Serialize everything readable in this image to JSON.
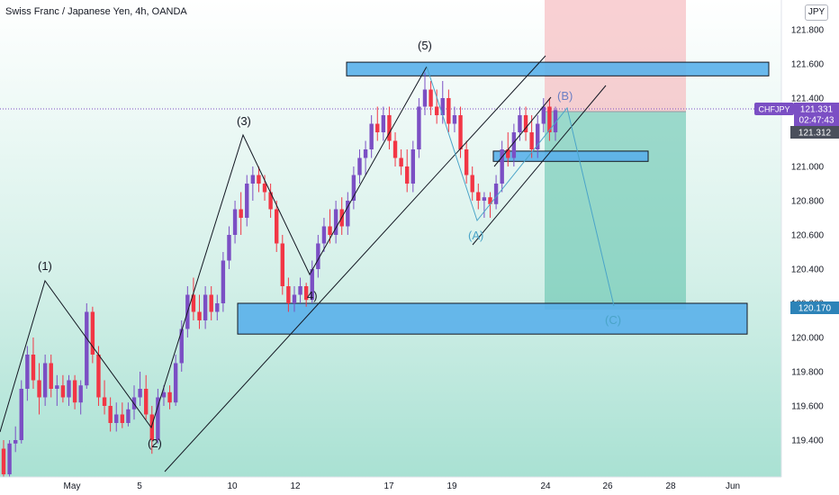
{
  "header": {
    "title": "Swiss Franc / Japanese Yen, 4h, OANDA",
    "currency": "JPY"
  },
  "price_badges": {
    "symbol": "CHFJPY",
    "last_price": "121.331",
    "countdown": "02:47:43",
    "level_1": "121.312",
    "level_2": "120.170"
  },
  "colors": {
    "bull": "#7b4fc4",
    "bear": "#f23645",
    "zone": "#5ab0ea",
    "target_zone": "#26a69a",
    "stop_zone": "#f23645"
  },
  "chart_data": {
    "type": "candlestick",
    "symbol": "CHFJPY",
    "title": "Swiss Franc / Japanese Yen, 4h, OANDA",
    "interval": "4h",
    "x_ticks": [
      "May",
      "5",
      "10",
      "12",
      "17",
      "19",
      "24",
      "26",
      "28",
      "Jun"
    ],
    "y_ticks": [
      "119.400",
      "119.600",
      "119.800",
      "120.000",
      "120.200",
      "120.400",
      "120.600",
      "120.800",
      "121.000",
      "121.200",
      "121.400",
      "121.600",
      "121.800"
    ],
    "ylim": [
      119.2,
      121.9
    ],
    "last_price": 121.331,
    "grid": false,
    "wave_labels": [
      "(1)",
      "(2)",
      "(3)",
      "4)",
      "(5)",
      "(A)",
      "(B)",
      "(C)"
    ],
    "candles_ohlc": [
      [
        119.35,
        119.4,
        119.15,
        119.2
      ],
      [
        119.2,
        119.4,
        119.18,
        119.38
      ],
      [
        119.38,
        119.48,
        119.33,
        119.4
      ],
      [
        119.4,
        119.75,
        119.38,
        119.7
      ],
      [
        119.7,
        119.95,
        119.63,
        119.9
      ],
      [
        119.9,
        120.0,
        119.7,
        119.75
      ],
      [
        119.75,
        119.85,
        119.55,
        119.65
      ],
      [
        119.65,
        119.9,
        119.6,
        119.85
      ],
      [
        119.85,
        119.9,
        119.65,
        119.7
      ],
      [
        119.7,
        119.78,
        119.6,
        119.72
      ],
      [
        119.72,
        119.78,
        119.62,
        119.65
      ],
      [
        119.65,
        119.78,
        119.6,
        119.75
      ],
      [
        119.75,
        119.78,
        119.58,
        119.62
      ],
      [
        119.62,
        119.75,
        119.55,
        119.72
      ],
      [
        119.72,
        120.2,
        119.7,
        120.15
      ],
      [
        120.15,
        120.18,
        119.85,
        119.9
      ],
      [
        119.9,
        119.95,
        119.6,
        119.65
      ],
      [
        119.65,
        119.75,
        119.55,
        119.6
      ],
      [
        119.6,
        119.65,
        119.45,
        119.5
      ],
      [
        119.5,
        119.62,
        119.45,
        119.55
      ],
      [
        119.55,
        119.62,
        119.47,
        119.5
      ],
      [
        119.5,
        119.62,
        119.48,
        119.58
      ],
      [
        119.58,
        119.72,
        119.52,
        119.65
      ],
      [
        119.65,
        119.8,
        119.6,
        119.7
      ],
      [
        119.7,
        119.78,
        119.52,
        119.55
      ],
      [
        119.55,
        119.6,
        119.32,
        119.4
      ],
      [
        119.4,
        119.7,
        119.38,
        119.65
      ],
      [
        119.65,
        119.72,
        119.6,
        119.68
      ],
      [
        119.68,
        119.72,
        119.58,
        119.62
      ],
      [
        119.62,
        119.9,
        119.6,
        119.85
      ],
      [
        119.85,
        120.1,
        119.8,
        120.05
      ],
      [
        120.05,
        120.3,
        120.0,
        120.25
      ],
      [
        120.25,
        120.35,
        120.1,
        120.15
      ],
      [
        120.15,
        120.25,
        120.05,
        120.1
      ],
      [
        120.1,
        120.3,
        120.05,
        120.25
      ],
      [
        120.25,
        120.3,
        120.1,
        120.15
      ],
      [
        120.15,
        120.25,
        120.1,
        120.2
      ],
      [
        120.2,
        120.5,
        120.15,
        120.45
      ],
      [
        120.45,
        120.65,
        120.4,
        120.6
      ],
      [
        120.6,
        120.8,
        120.55,
        120.75
      ],
      [
        120.75,
        120.85,
        120.6,
        120.7
      ],
      [
        120.7,
        120.95,
        120.65,
        120.9
      ],
      [
        120.9,
        121.0,
        120.8,
        120.95
      ],
      [
        120.95,
        121.0,
        120.85,
        120.9
      ],
      [
        120.9,
        120.95,
        120.8,
        120.85
      ],
      [
        120.85,
        120.9,
        120.7,
        120.75
      ],
      [
        120.75,
        120.8,
        120.5,
        120.55
      ],
      [
        120.55,
        120.6,
        120.25,
        120.3
      ],
      [
        120.3,
        120.35,
        120.15,
        120.2
      ],
      [
        120.2,
        120.3,
        120.15,
        120.25
      ],
      [
        120.25,
        120.35,
        120.2,
        120.3
      ],
      [
        120.3,
        120.32,
        120.18,
        120.22
      ],
      [
        120.22,
        120.45,
        120.2,
        120.4
      ],
      [
        120.4,
        120.6,
        120.35,
        120.55
      ],
      [
        120.55,
        120.7,
        120.5,
        120.65
      ],
      [
        120.65,
        120.75,
        120.55,
        120.6
      ],
      [
        120.6,
        120.8,
        120.55,
        120.75
      ],
      [
        120.75,
        120.82,
        120.6,
        120.65
      ],
      [
        120.65,
        120.85,
        120.6,
        120.8
      ],
      [
        120.8,
        121.0,
        120.75,
        120.95
      ],
      [
        120.95,
        121.1,
        120.9,
        121.05
      ],
      [
        121.05,
        121.15,
        120.95,
        121.1
      ],
      [
        121.1,
        121.3,
        121.05,
        121.25
      ],
      [
        121.25,
        121.35,
        121.15,
        121.2
      ],
      [
        121.2,
        121.35,
        121.15,
        121.3
      ],
      [
        121.3,
        121.35,
        121.1,
        121.15
      ],
      [
        121.15,
        121.2,
        121.0,
        121.05
      ],
      [
        121.05,
        121.1,
        120.95,
        121.0
      ],
      [
        121.0,
        121.1,
        120.85,
        120.9
      ],
      [
        120.9,
        121.15,
        120.85,
        121.1
      ],
      [
        121.1,
        121.4,
        121.05,
        121.35
      ],
      [
        121.35,
        121.55,
        121.3,
        121.45
      ],
      [
        121.45,
        121.5,
        121.3,
        121.35
      ],
      [
        121.35,
        121.45,
        121.25,
        121.3
      ],
      [
        121.3,
        121.5,
        121.25,
        121.4
      ],
      [
        121.4,
        121.45,
        121.2,
        121.25
      ],
      [
        121.25,
        121.35,
        121.2,
        121.3
      ],
      [
        121.3,
        121.35,
        121.05,
        121.1
      ],
      [
        121.1,
        121.15,
        120.9,
        120.95
      ],
      [
        120.95,
        121.0,
        120.8,
        120.85
      ],
      [
        120.85,
        120.9,
        120.75,
        120.8
      ],
      [
        120.8,
        120.85,
        120.7,
        120.82
      ],
      [
        120.82,
        120.85,
        120.7,
        120.78
      ],
      [
        120.78,
        120.95,
        120.75,
        120.9
      ],
      [
        120.9,
        121.15,
        120.85,
        121.1
      ],
      [
        121.1,
        121.2,
        121.0,
        121.05
      ],
      [
        121.05,
        121.25,
        121.0,
        121.2
      ],
      [
        121.2,
        121.35,
        121.15,
        121.3
      ],
      [
        121.3,
        121.35,
        121.15,
        121.2
      ],
      [
        121.2,
        121.3,
        121.05,
        121.1
      ],
      [
        121.1,
        121.3,
        121.05,
        121.25
      ],
      [
        121.25,
        121.4,
        121.2,
        121.35
      ],
      [
        121.35,
        121.4,
        121.15,
        121.2
      ],
      [
        121.2,
        121.35,
        121.15,
        121.33
      ]
    ],
    "zones": [
      {
        "type": "resistance",
        "from": 121.53,
        "to": 121.61
      },
      {
        "type": "support",
        "from": 121.03,
        "to": 121.09
      },
      {
        "type": "target",
        "from": 120.02,
        "to": 120.2
      }
    ],
    "position": {
      "entry": 121.31,
      "stop": 121.95,
      "target": 120.17
    }
  }
}
